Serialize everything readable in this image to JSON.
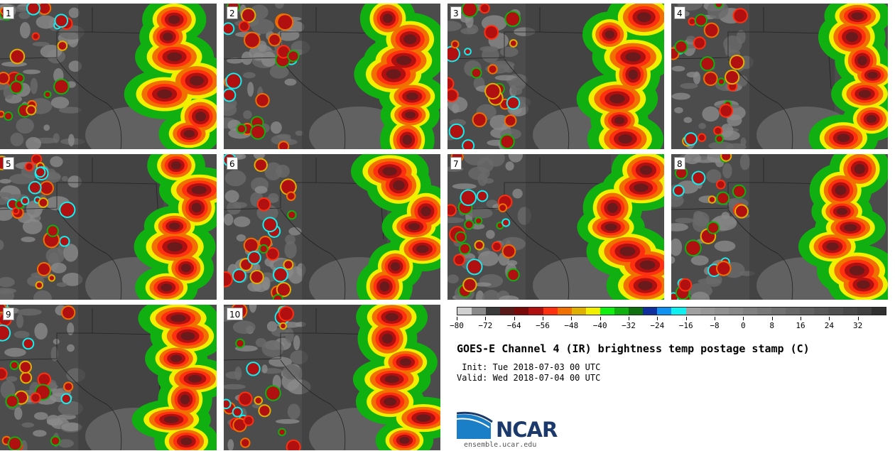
{
  "title": "GOES-E Channel 4 (IR) brightness temp postage stamp (C)",
  "init_label": " Init: Tue 2018-07-03 00 UTC",
  "valid_label": "Valid: Wed 2018-07-04 00 UTC",
  "panels": [
    "1",
    "2",
    "3",
    "4",
    "5",
    "6",
    "7",
    "8",
    "9",
    "10"
  ],
  "colorbar": {
    "min": -80,
    "max": 40,
    "step": 4,
    "tick_labels": [
      "−80",
      "−72",
      "−64",
      "−56",
      "−48",
      "−40",
      "−32",
      "−24",
      "−16",
      "−8",
      "0",
      "8",
      "16",
      "24",
      "32"
    ],
    "tick_values": [
      -80,
      -72,
      -64,
      -56,
      -48,
      -40,
      -32,
      -24,
      -16,
      -8,
      0,
      8,
      16,
      24,
      32
    ],
    "colors": [
      "#d0d0d0",
      "#8a8a8a",
      "#3a3a3a",
      "#5a1a1a",
      "#7a0a0a",
      "#b01010",
      "#ff3010",
      "#f07000",
      "#e0b000",
      "#f0f000",
      "#10f010",
      "#10b010",
      "#107010",
      "#1030a0",
      "#1090f0",
      "#10f0f0",
      "#a0a0a0",
      "#989898",
      "#909090",
      "#888888",
      "#808080",
      "#787878",
      "#707070",
      "#686868",
      "#606060",
      "#585858",
      "#505050",
      "#484848",
      "#404040",
      "#303030"
    ]
  },
  "logo": {
    "name": "NCAR",
    "url": "ensemble.ucar.edu"
  }
}
